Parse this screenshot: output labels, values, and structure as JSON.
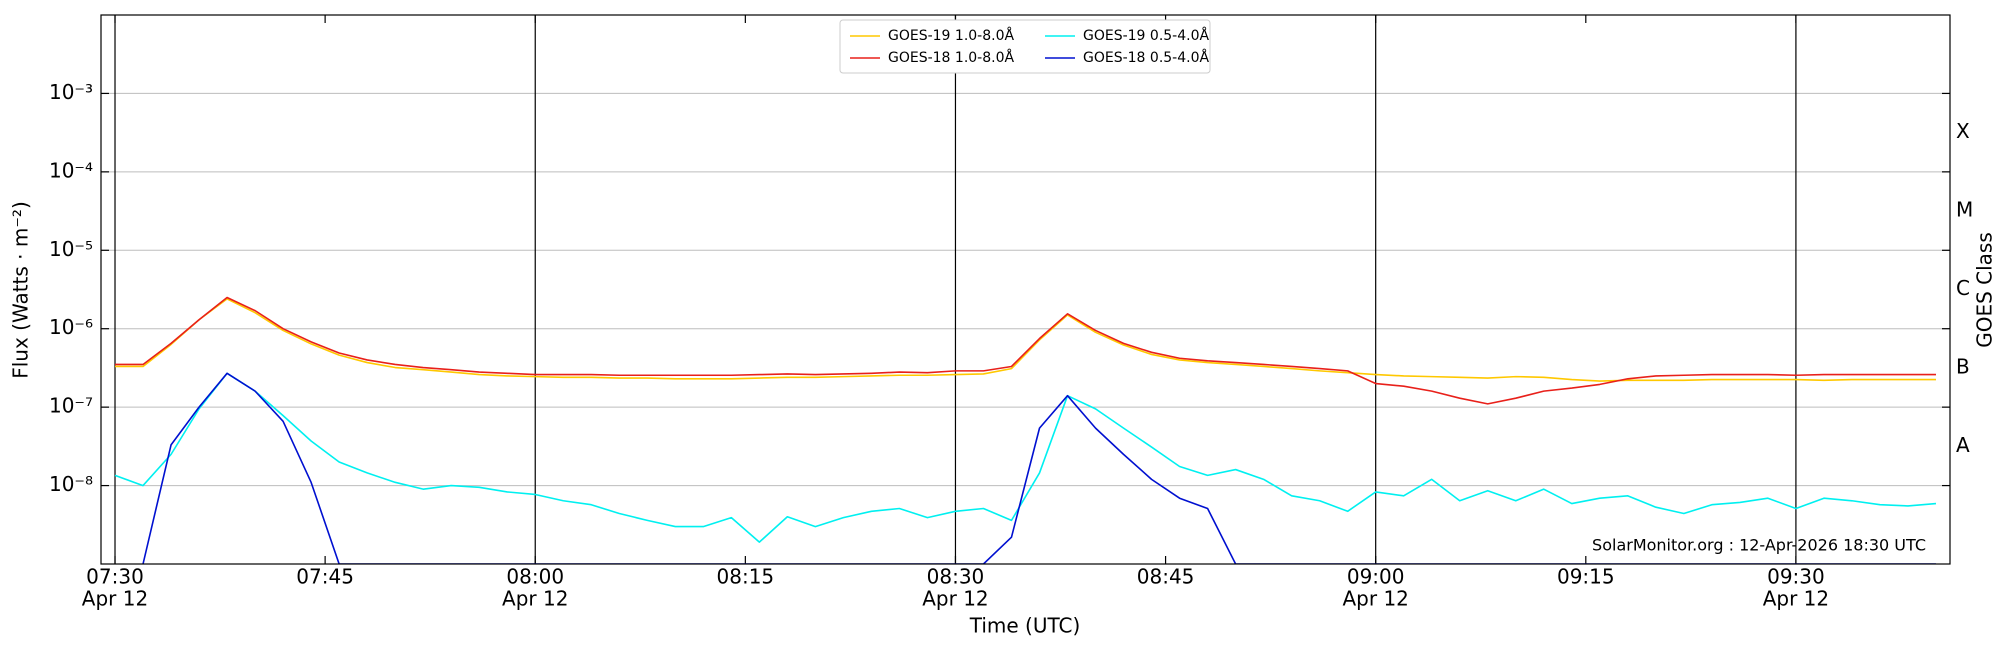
{
  "chart_data": {
    "type": "line",
    "xlabel": "Time (UTC)",
    "ylabel": "Flux (Watts · m⁻²)",
    "y2label": "GOES Class",
    "annotation": "SolarMonitor.org : 12-Apr-2026 18:30 UTC",
    "log_y": true,
    "grid": true,
    "legend": "upper center",
    "xlim": [
      "07:29",
      "09:41"
    ],
    "xticks": [
      {
        "value": "07:30",
        "label": [
          "07:30",
          "Apr 12"
        ]
      },
      "07:45",
      {
        "value": "08:00",
        "label": [
          "08:00",
          "Apr 12"
        ]
      },
      "08:15",
      {
        "value": "08:30",
        "label": [
          "08:30",
          "Apr 12"
        ]
      },
      "08:45",
      {
        "value": "09:00",
        "label": [
          "09:00",
          "Apr 12"
        ]
      },
      "09:15",
      {
        "value": "09:30",
        "label": [
          "09:30",
          "Apr 12"
        ]
      }
    ],
    "vlines": [
      "07:30",
      "08:00",
      "08:30",
      "09:00",
      "09:30"
    ],
    "ylim": [
      1e-09,
      0.01
    ],
    "yticks": [
      {
        "value": 1e-08,
        "label": "10⁻⁸"
      },
      {
        "value": 1e-07,
        "label": "10⁻⁷"
      },
      {
        "value": 1e-06,
        "label": "10⁻⁶"
      },
      {
        "value": 1e-05,
        "label": "10⁻⁵"
      },
      {
        "value": 0.0001,
        "label": "10⁻⁴"
      },
      {
        "value": 0.001,
        "label": "10⁻³"
      }
    ],
    "y2lim": [
      1e-09,
      0.01
    ],
    "y2ticks": [
      {
        "value": 3.16e-08,
        "label": "A"
      },
      {
        "value": 3.16e-07,
        "label": "B"
      },
      {
        "value": 3.16e-06,
        "label": "C"
      },
      {
        "value": 3.16e-05,
        "label": "M"
      },
      {
        "value": 0.000316,
        "label": "X"
      }
    ],
    "x": [
      "07:30",
      "07:32",
      "07:34",
      "07:36",
      "07:38",
      "07:40",
      "07:42",
      "07:44",
      "07:46",
      "07:48",
      "07:50",
      "07:52",
      "07:54",
      "07:56",
      "07:58",
      "08:00",
      "08:02",
      "08:04",
      "08:06",
      "08:08",
      "08:10",
      "08:12",
      "08:14",
      "08:16",
      "08:18",
      "08:20",
      "08:22",
      "08:24",
      "08:26",
      "08:28",
      "08:30",
      "08:32",
      "08:34",
      "08:36",
      "08:38",
      "08:40",
      "08:42",
      "08:44",
      "08:46",
      "08:48",
      "08:50",
      "08:52",
      "08:54",
      "08:56",
      "08:58",
      "09:00",
      "09:02",
      "09:04",
      "09:06",
      "09:08",
      "09:10",
      "09:12",
      "09:14",
      "09:16",
      "09:18",
      "09:20",
      "09:22",
      "09:24",
      "09:26",
      "09:28",
      "09:30",
      "09:32",
      "09:34",
      "09:36",
      "09:38",
      "09:40"
    ],
    "series": [
      {
        "name": "GOES-19 1.0-8.0Å",
        "color": "#ffc800",
        "values": [
          3.3e-07,
          3.3e-07,
          6.3e-07,
          1.3e-06,
          2.4e-06,
          1.6e-06,
          9.5e-07,
          6.4e-07,
          4.6e-07,
          3.7e-07,
          3.2e-07,
          3e-07,
          2.8e-07,
          2.6e-07,
          2.5e-07,
          2.45e-07,
          2.4e-07,
          2.4e-07,
          2.35e-07,
          2.35e-07,
          2.3e-07,
          2.3e-07,
          2.3e-07,
          2.35e-07,
          2.4e-07,
          2.4e-07,
          2.45e-07,
          2.5e-07,
          2.55e-07,
          2.55e-07,
          2.6e-07,
          2.65e-07,
          3.1e-07,
          7.2e-07,
          1.5e-06,
          9e-07,
          6.2e-07,
          4.7e-07,
          4e-07,
          3.7e-07,
          3.5e-07,
          3.3e-07,
          3.1e-07,
          2.9e-07,
          2.75e-07,
          2.6e-07,
          2.5e-07,
          2.45e-07,
          2.4e-07,
          2.35e-07,
          2.45e-07,
          2.4e-07,
          2.25e-07,
          2.15e-07,
          2.2e-07,
          2.2e-07,
          2.2e-07,
          2.25e-07,
          2.25e-07,
          2.25e-07,
          2.25e-07,
          2.2e-07,
          2.25e-07,
          2.25e-07,
          2.25e-07,
          2.25e-07
        ]
      },
      {
        "name": "GOES-18 1.0-8.0Å",
        "color": "#e8201a",
        "values": [
          3.5e-07,
          3.5e-07,
          6.5e-07,
          1.3e-06,
          2.5e-06,
          1.7e-06,
          1e-06,
          6.8e-07,
          4.9e-07,
          4e-07,
          3.5e-07,
          3.2e-07,
          3e-07,
          2.8e-07,
          2.7e-07,
          2.6e-07,
          2.6e-07,
          2.6e-07,
          2.55e-07,
          2.55e-07,
          2.55e-07,
          2.55e-07,
          2.55e-07,
          2.6e-07,
          2.65e-07,
          2.6e-07,
          2.65e-07,
          2.7e-07,
          2.8e-07,
          2.75e-07,
          2.9e-07,
          2.9e-07,
          3.3e-07,
          7.5e-07,
          1.55e-06,
          9.5e-07,
          6.5e-07,
          5e-07,
          4.2e-07,
          3.9e-07,
          3.7e-07,
          3.5e-07,
          3.3e-07,
          3.1e-07,
          2.9e-07,
          2e-07,
          1.85e-07,
          1.6e-07,
          1.3e-07,
          1.1e-07,
          1.3e-07,
          1.6e-07,
          1.75e-07,
          1.95e-07,
          2.3e-07,
          2.5e-07,
          2.55e-07,
          2.6e-07,
          2.6e-07,
          2.6e-07,
          2.55e-07,
          2.6e-07,
          2.6e-07,
          2.6e-07,
          2.6e-07,
          2.6e-07
        ]
      },
      {
        "name": "GOES-19 0.5-4.0Å",
        "color": "#00f0f0",
        "values": [
          1.35e-08,
          1e-08,
          2.5e-08,
          9.5e-08,
          2.7e-07,
          1.6e-07,
          7.8e-08,
          3.7e-08,
          2e-08,
          1.45e-08,
          1.1e-08,
          9e-09,
          1e-08,
          9.5e-09,
          8.3e-09,
          7.7e-09,
          6.4e-09,
          5.7e-09,
          4.4e-09,
          3.6e-09,
          3e-09,
          3e-09,
          3.9e-09,
          1.9e-09,
          4e-09,
          3e-09,
          3.9e-09,
          4.7e-09,
          5.1e-09,
          3.9e-09,
          4.7e-09,
          5.1e-09,
          3.6e-09,
          1.45e-08,
          1.4e-07,
          9.5e-08,
          5.4e-08,
          3.1e-08,
          1.75e-08,
          1.35e-08,
          1.6e-08,
          1.2e-08,
          7.4e-09,
          6.4e-09,
          4.7e-09,
          8.3e-09,
          7.4e-09,
          1.2e-08,
          6.4e-09,
          8.6e-09,
          6.4e-09,
          9e-09,
          5.9e-09,
          6.9e-09,
          7.4e-09,
          5.3e-09,
          4.4e-09,
          5.7e-09,
          6.1e-09,
          6.9e-09,
          5.1e-09,
          6.9e-09,
          6.4e-09,
          5.7e-09,
          5.5e-09,
          5.9e-09
        ]
      },
      {
        "name": "GOES-18 0.5-4.0Å",
        "color": "#0010d0",
        "values": [
          null,
          1e-09,
          3.3e-08,
          1e-07,
          2.7e-07,
          1.6e-07,
          6.6e-08,
          1.1e-08,
          1e-09,
          1e-09,
          1e-09,
          1e-09,
          1e-09,
          1e-09,
          1e-09,
          1e-09,
          1e-09,
          1e-09,
          1e-09,
          1e-09,
          1e-09,
          1e-09,
          1e-09,
          1e-09,
          1e-09,
          1e-09,
          1e-09,
          1e-09,
          1e-09,
          1e-09,
          1e-09,
          1e-09,
          2.2e-09,
          5.4e-08,
          1.4e-07,
          5.4e-08,
          2.5e-08,
          1.2e-08,
          6.9e-09,
          5.1e-09,
          1e-09,
          1e-09,
          1e-09,
          1e-09,
          1e-09,
          1e-09,
          1e-09,
          1e-09,
          1e-09,
          1e-09,
          1e-09,
          1e-09,
          1e-09,
          1e-09,
          1e-09,
          1e-09,
          1e-09,
          1e-09,
          1e-09,
          1e-09,
          1e-09,
          1e-09,
          1e-09,
          1e-09,
          1e-09,
          1e-09
        ]
      }
    ]
  }
}
